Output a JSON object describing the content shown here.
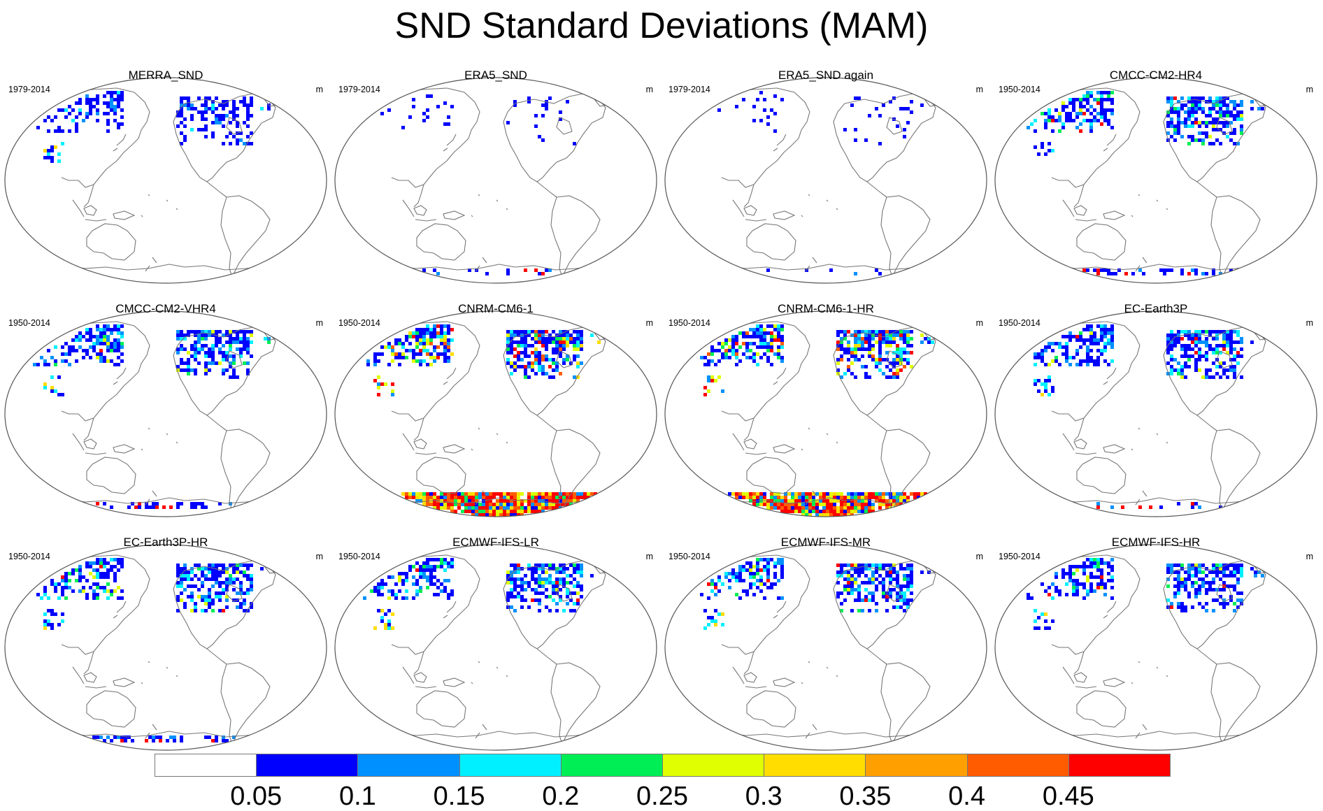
{
  "title": "SND Standard Deviations (MAM)",
  "panels": [
    {
      "title": "MERRA_SND",
      "period": "1979-2014",
      "units": "m",
      "snow": "low",
      "antarctic": "none"
    },
    {
      "title": "ERA5_SND",
      "period": "1979-2014",
      "units": "m",
      "snow": "sparse",
      "antarctic": "trace"
    },
    {
      "title": "ERA5_SND again",
      "period": "1979-2014",
      "units": "m",
      "snow": "sparse",
      "antarctic": "trace"
    },
    {
      "title": "CMCC-CM2-HR4",
      "period": "1950-2014",
      "units": "m",
      "snow": "medium",
      "antarctic": "edge"
    },
    {
      "title": "CMCC-CM2-VHR4",
      "period": "1950-2014",
      "units": "m",
      "snow": "medium",
      "antarctic": "edge"
    },
    {
      "title": "CNRM-CM6-1",
      "period": "1950-2014",
      "units": "m",
      "snow": "high",
      "antarctic": "full"
    },
    {
      "title": "CNRM-CM6-1-HR",
      "period": "1950-2014",
      "units": "m",
      "snow": "high",
      "antarctic": "full"
    },
    {
      "title": "EC-Earth3P",
      "period": "1950-2014",
      "units": "m",
      "snow": "medium",
      "antarctic": "trace"
    },
    {
      "title": "EC-Earth3P-HR",
      "period": "1950-2014",
      "units": "m",
      "snow": "medium",
      "antarctic": "edge"
    },
    {
      "title": "ECMWF-IFS-LR",
      "period": "1950-2014",
      "units": "m",
      "snow": "medium",
      "antarctic": "none"
    },
    {
      "title": "ECMWF-IFS-MR",
      "period": "1950-2014",
      "units": "m",
      "snow": "medium",
      "antarctic": "none"
    },
    {
      "title": "ECMWF-IFS-HR",
      "period": "1950-2014",
      "units": "m",
      "snow": "medium",
      "antarctic": "none"
    }
  ],
  "colorbar": {
    "colors": [
      "#ffffff",
      "#0000ff",
      "#0090ff",
      "#00f0ff",
      "#00ee55",
      "#e0ff00",
      "#ffdd00",
      "#ffa000",
      "#ff5c00",
      "#ff0000"
    ],
    "labels": [
      "0.05",
      "0.1",
      "0.15",
      "0.2",
      "0.25",
      "0.3",
      "0.35",
      "0.4",
      "0.45"
    ]
  },
  "colors": {
    "coastline": "#777777",
    "map_border": "#555555"
  }
}
